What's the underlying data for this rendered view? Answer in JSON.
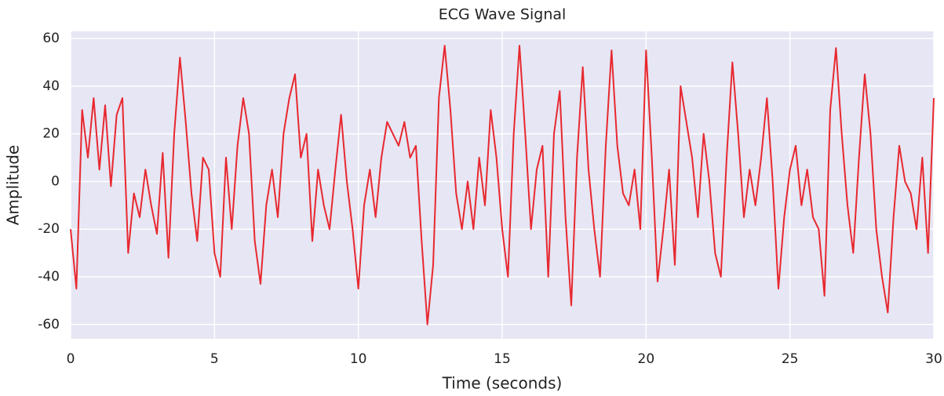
{
  "chart_data": {
    "type": "line",
    "title": "ECG Wave Signal",
    "xlabel": "Time (seconds)",
    "ylabel": "Amplitude",
    "x": [
      0,
      0.2,
      0.4,
      0.6,
      0.8,
      1,
      1.2,
      1.4,
      1.6,
      1.8,
      2,
      2.2,
      2.4,
      2.6,
      2.8,
      3,
      3.2,
      3.4,
      3.6,
      3.8,
      4,
      4.2,
      4.4,
      4.6,
      4.8,
      5,
      5.2,
      5.4,
      5.6,
      5.8,
      6,
      6.2,
      6.4,
      6.6,
      6.8,
      7,
      7.2,
      7.4,
      7.6,
      7.8,
      8,
      8.2,
      8.4,
      8.6,
      8.8,
      9,
      9.2,
      9.4,
      9.6,
      9.8,
      10,
      10.2,
      10.4,
      10.6,
      10.8,
      11,
      11.2,
      11.4,
      11.6,
      11.8,
      12,
      12.2,
      12.4,
      12.6,
      12.8,
      13,
      13.2,
      13.4,
      13.6,
      13.8,
      14,
      14.2,
      14.4,
      14.6,
      14.8,
      15,
      15.2,
      15.4,
      15.6,
      15.8,
      16,
      16.2,
      16.4,
      16.6,
      16.8,
      17,
      17.2,
      17.4,
      17.6,
      17.8,
      18,
      18.2,
      18.4,
      18.6,
      18.8,
      19,
      19.2,
      19.4,
      19.6,
      19.8,
      20,
      20.2,
      20.4,
      20.6,
      20.8,
      21,
      21.2,
      21.4,
      21.6,
      21.8,
      22,
      22.2,
      22.4,
      22.6,
      22.8,
      23,
      23.2,
      23.4,
      23.6,
      23.8,
      24,
      24.2,
      24.4,
      24.6,
      24.8,
      25,
      25.2,
      25.4,
      25.6,
      25.8,
      26,
      26.2,
      26.4,
      26.6,
      26.8,
      27,
      27.2,
      27.4,
      27.6,
      27.8,
      28,
      28.2,
      28.4,
      28.6,
      28.8,
      29,
      29.2,
      29.4,
      29.6,
      29.8,
      30
    ],
    "values": [
      -20,
      -45,
      30,
      10,
      35,
      5,
      32,
      -2,
      28,
      35,
      -30,
      -5,
      -15,
      5,
      -10,
      -22,
      12,
      -32,
      20,
      52,
      25,
      -5,
      -25,
      10,
      5,
      -30,
      -40,
      10,
      -20,
      15,
      35,
      20,
      -25,
      -43,
      -10,
      5,
      -15,
      20,
      35,
      45,
      10,
      20,
      -25,
      5,
      -10,
      -20,
      5,
      28,
      0,
      -20,
      -45,
      -10,
      5,
      -15,
      10,
      25,
      20,
      15,
      25,
      10,
      15,
      -25,
      -60,
      -35,
      35,
      57,
      30,
      -5,
      -20,
      0,
      -20,
      10,
      -10,
      30,
      10,
      -20,
      -40,
      20,
      57,
      20,
      -20,
      5,
      15,
      -40,
      20,
      38,
      -15,
      -52,
      10,
      48,
      5,
      -20,
      -40,
      15,
      55,
      15,
      -5,
      -10,
      5,
      -20,
      55,
      10,
      -42,
      -20,
      5,
      -35,
      40,
      25,
      10,
      -15,
      20,
      0,
      -30,
      -40,
      10,
      50,
      20,
      -15,
      5,
      -10,
      10,
      35,
      0,
      -45,
      -15,
      5,
      15,
      -10,
      5,
      -15,
      -20,
      -48,
      30,
      56,
      20,
      -10,
      -30,
      10,
      45,
      20,
      -20,
      -40,
      -55,
      -15,
      15,
      0,
      -5,
      -20,
      10,
      -30,
      35
    ],
    "color": "#e8282f",
    "xlim": [
      0,
      30
    ],
    "xticks": [
      0,
      5,
      10,
      15,
      20,
      25,
      30
    ],
    "ylim": [
      -66,
      63
    ],
    "yticks": [
      -60,
      -40,
      -20,
      0,
      20,
      40,
      60
    ],
    "grid": true
  }
}
